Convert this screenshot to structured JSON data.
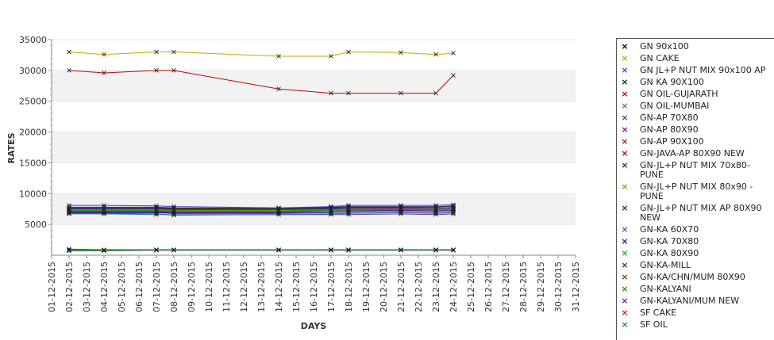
{
  "chart_data": {
    "type": "line",
    "xlabel": "DAYS",
    "ylabel": "RATES",
    "ylim": [
      0,
      35000
    ],
    "yticks": [
      5000,
      10000,
      15000,
      20000,
      25000,
      30000,
      35000
    ],
    "x_dates": [
      "01-12-2015",
      "02-12-2015",
      "03-12-2015",
      "04-12-2015",
      "05-12-2015",
      "06-12-2015",
      "07-12-2015",
      "08-12-2015",
      "09-12-2015",
      "10-12-2015",
      "11-12-2015",
      "12-12-2015",
      "13-12-2015",
      "14-12-2015",
      "15-12-2015",
      "16-12-2015",
      "17-12-2015",
      "18-12-2015",
      "19-12-2015",
      "20-12-2015",
      "21-12-2015",
      "22-12-2015",
      "23-12-2015",
      "24-12-2015",
      "25-12-2015",
      "26-12-2015",
      "27-12-2015",
      "28-12-2015",
      "29-12-2015",
      "30-12-2015",
      "31-12-2015"
    ],
    "grid_bands": true,
    "legend_position": "right",
    "series": [
      {
        "name": "GN 90x100",
        "color": "#000000",
        "points": [
          [
            "02-12-2015",
            7200
          ],
          [
            "04-12-2015",
            7200
          ],
          [
            "07-12-2015",
            7300
          ],
          [
            "08-12-2015",
            7300
          ],
          [
            "14-12-2015",
            7200
          ],
          [
            "17-12-2015",
            7400
          ],
          [
            "18-12-2015",
            7400
          ],
          [
            "21-12-2015",
            7500
          ],
          [
            "23-12-2015",
            7400
          ],
          [
            "24-12-2015",
            7500
          ]
        ]
      },
      {
        "name": "GN CAKE",
        "color": "#c8a800",
        "points": [
          [
            "02-12-2015",
            33000
          ],
          [
            "04-12-2015",
            32600
          ],
          [
            "07-12-2015",
            33000
          ],
          [
            "08-12-2015",
            33000
          ],
          [
            "14-12-2015",
            32300
          ],
          [
            "17-12-2015",
            32300
          ],
          [
            "18-12-2015",
            33000
          ],
          [
            "21-12-2015",
            32900
          ],
          [
            "23-12-2015",
            32600
          ],
          [
            "24-12-2015",
            32800
          ]
        ]
      },
      {
        "name": "GN JL+P NUT MIX 90x100 AP",
        "color": "#4444cc",
        "points": [
          [
            "02-12-2015",
            8100
          ],
          [
            "04-12-2015",
            8100
          ],
          [
            "07-12-2015",
            8000
          ],
          [
            "08-12-2015",
            7900
          ],
          [
            "14-12-2015",
            7700
          ],
          [
            "17-12-2015",
            7900
          ],
          [
            "18-12-2015",
            8100
          ],
          [
            "21-12-2015",
            8100
          ],
          [
            "23-12-2015",
            8100
          ],
          [
            "24-12-2015",
            8200
          ]
        ]
      },
      {
        "name": "GN KA 90X100",
        "color": "#004400",
        "points": [
          [
            "02-12-2015",
            7500
          ],
          [
            "04-12-2015",
            7500
          ],
          [
            "07-12-2015",
            7500
          ],
          [
            "08-12-2015",
            7400
          ],
          [
            "14-12-2015",
            7300
          ],
          [
            "17-12-2015",
            7400
          ],
          [
            "18-12-2015",
            7500
          ],
          [
            "21-12-2015",
            7600
          ],
          [
            "23-12-2015",
            7600
          ],
          [
            "24-12-2015",
            7700
          ]
        ]
      },
      {
        "name": "GN OIL-GUJARATH",
        "color": "#cc0000",
        "points": [
          [
            "02-12-2015",
            30000
          ],
          [
            "04-12-2015",
            29600
          ],
          [
            "07-12-2015",
            30000
          ],
          [
            "08-12-2015",
            30000
          ],
          [
            "14-12-2015",
            27000
          ],
          [
            "17-12-2015",
            26300
          ],
          [
            "18-12-2015",
            26300
          ],
          [
            "21-12-2015",
            26300
          ],
          [
            "23-12-2015",
            26300
          ],
          [
            "24-12-2015",
            29200
          ]
        ]
      },
      {
        "name": "GN OIL-MUMBAI",
        "color": "#339933",
        "points": [
          [
            "02-12-2015",
            700
          ],
          [
            "04-12-2015",
            700
          ],
          [
            "07-12-2015",
            800
          ],
          [
            "08-12-2015",
            800
          ],
          [
            "14-12-2015",
            800
          ],
          [
            "17-12-2015",
            800
          ],
          [
            "18-12-2015",
            800
          ],
          [
            "21-12-2015",
            800
          ],
          [
            "23-12-2015",
            800
          ],
          [
            "24-12-2015",
            800
          ]
        ]
      },
      {
        "name": "GN-AP 70X80",
        "color": "#6633aa",
        "points": [
          [
            "02-12-2015",
            6800
          ],
          [
            "04-12-2015",
            6800
          ],
          [
            "07-12-2015",
            6700
          ],
          [
            "08-12-2015",
            6500
          ],
          [
            "14-12-2015",
            6600
          ],
          [
            "17-12-2015",
            6600
          ],
          [
            "18-12-2015",
            6600
          ],
          [
            "21-12-2015",
            6700
          ],
          [
            "23-12-2015",
            6600
          ],
          [
            "24-12-2015",
            6700
          ]
        ]
      },
      {
        "name": "GN-AP 80X90",
        "color": "#990099",
        "points": [
          [
            "02-12-2015",
            7000
          ],
          [
            "04-12-2015",
            7000
          ],
          [
            "07-12-2015",
            7000
          ],
          [
            "08-12-2015",
            6900
          ],
          [
            "14-12-2015",
            6900
          ],
          [
            "17-12-2015",
            7100
          ],
          [
            "18-12-2015",
            7200
          ],
          [
            "21-12-2015",
            7300
          ],
          [
            "23-12-2015",
            7200
          ],
          [
            "24-12-2015",
            7300
          ]
        ]
      },
      {
        "name": "GN-AP 90X100",
        "color": "#773344",
        "points": [
          [
            "02-12-2015",
            7300
          ],
          [
            "04-12-2015",
            7300
          ],
          [
            "07-12-2015",
            7200
          ],
          [
            "08-12-2015",
            7100
          ],
          [
            "14-12-2015",
            7000
          ],
          [
            "17-12-2015",
            7200
          ],
          [
            "18-12-2015",
            7300
          ],
          [
            "21-12-2015",
            7400
          ],
          [
            "23-12-2015",
            7400
          ],
          [
            "24-12-2015",
            7500
          ]
        ]
      },
      {
        "name": "GN-JAVA-AP 80X90 NEW",
        "color": "#aa0022",
        "points": [
          [
            "02-12-2015",
            7600
          ],
          [
            "04-12-2015",
            7600
          ],
          [
            "07-12-2015",
            7600
          ],
          [
            "08-12-2015",
            7500
          ],
          [
            "14-12-2015",
            7400
          ],
          [
            "17-12-2015",
            7600
          ],
          [
            "18-12-2015",
            7700
          ],
          [
            "21-12-2015",
            7700
          ],
          [
            "23-12-2015",
            7600
          ],
          [
            "24-12-2015",
            7700
          ]
        ]
      },
      {
        "name": "GN-JL+P NUT MIX 70x80-PUNE",
        "color": "#551155",
        "points": [
          [
            "02-12-2015",
            7100
          ],
          [
            "04-12-2015",
            7100
          ],
          [
            "07-12-2015",
            7100
          ],
          [
            "08-12-2015",
            7000
          ],
          [
            "14-12-2015",
            7000
          ],
          [
            "17-12-2015",
            7200
          ],
          [
            "18-12-2015",
            7200
          ],
          [
            "21-12-2015",
            7300
          ],
          [
            "23-12-2015",
            7300
          ],
          [
            "24-12-2015",
            7400
          ]
        ]
      },
      {
        "name": "GN-JL+P NUT MIX 80x90 - PUNE",
        "color": "#88aa00",
        "points": [
          [
            "02-12-2015",
            7400
          ],
          [
            "04-12-2015",
            7400
          ],
          [
            "07-12-2015",
            7400
          ],
          [
            "08-12-2015",
            7300
          ],
          [
            "14-12-2015",
            7300
          ],
          [
            "17-12-2015",
            7400
          ],
          [
            "18-12-2015",
            7500
          ],
          [
            "21-12-2015",
            7500
          ],
          [
            "23-12-2015",
            7500
          ],
          [
            "24-12-2015",
            7600
          ]
        ]
      },
      {
        "name": "GN-JL+P NUT MIX AP 80X90 NEW",
        "color": "#223322",
        "points": [
          [
            "02-12-2015",
            7700
          ],
          [
            "04-12-2015",
            7700
          ],
          [
            "07-12-2015",
            7700
          ],
          [
            "08-12-2015",
            7600
          ],
          [
            "14-12-2015",
            7500
          ],
          [
            "17-12-2015",
            7700
          ],
          [
            "18-12-2015",
            7800
          ],
          [
            "21-12-2015",
            7800
          ],
          [
            "23-12-2015",
            7800
          ],
          [
            "24-12-2015",
            7900
          ]
        ]
      },
      {
        "name": "GN-KA 60X70",
        "color": "#3366cc",
        "points": [
          [
            "02-12-2015",
            6700
          ],
          [
            "04-12-2015",
            6700
          ],
          [
            "07-12-2015",
            6600
          ],
          [
            "08-12-2015",
            6600
          ],
          [
            "14-12-2015",
            6600
          ],
          [
            "17-12-2015",
            6700
          ],
          [
            "18-12-2015",
            6800
          ],
          [
            "21-12-2015",
            6900
          ],
          [
            "23-12-2015",
            6800
          ],
          [
            "24-12-2015",
            6900
          ]
        ]
      },
      {
        "name": "GN-KA 70X80",
        "color": "#112288",
        "points": [
          [
            "02-12-2015",
            6900
          ],
          [
            "04-12-2015",
            6900
          ],
          [
            "07-12-2015",
            6900
          ],
          [
            "08-12-2015",
            6800
          ],
          [
            "14-12-2015",
            6800
          ],
          [
            "17-12-2015",
            6900
          ],
          [
            "18-12-2015",
            7000
          ],
          [
            "21-12-2015",
            7100
          ],
          [
            "23-12-2015",
            7000
          ],
          [
            "24-12-2015",
            7100
          ]
        ]
      },
      {
        "name": "GN-KA 80X90",
        "color": "#22aa44",
        "points": [
          [
            "02-12-2015",
            7200
          ],
          [
            "04-12-2015",
            7200
          ],
          [
            "07-12-2015",
            7200
          ],
          [
            "08-12-2015",
            7100
          ],
          [
            "14-12-2015",
            7100
          ],
          [
            "17-12-2015",
            7200
          ],
          [
            "18-12-2015",
            7300
          ],
          [
            "21-12-2015",
            7400
          ],
          [
            "23-12-2015",
            7300
          ],
          [
            "24-12-2015",
            7400
          ]
        ]
      },
      {
        "name": "GN-KA-MILL",
        "color": "#333377",
        "points": [
          [
            "02-12-2015",
            7800
          ],
          [
            "04-12-2015",
            7800
          ],
          [
            "07-12-2015",
            7800
          ],
          [
            "08-12-2015",
            7700
          ],
          [
            "14-12-2015",
            7600
          ],
          [
            "17-12-2015",
            7800
          ],
          [
            "18-12-2015",
            7900
          ],
          [
            "21-12-2015",
            7900
          ],
          [
            "23-12-2015",
            7900
          ],
          [
            "24-12-2015",
            8000
          ]
        ]
      },
      {
        "name": "GN-KA/CHN/MUM 80X90",
        "color": "#993300",
        "points": [
          [
            "02-12-2015",
            900
          ],
          [
            "04-12-2015",
            800
          ],
          [
            "07-12-2015",
            900
          ],
          [
            "08-12-2015",
            900
          ],
          [
            "14-12-2015",
            900
          ],
          [
            "17-12-2015",
            900
          ],
          [
            "18-12-2015",
            900
          ],
          [
            "21-12-2015",
            900
          ],
          [
            "23-12-2015",
            900
          ],
          [
            "24-12-2015",
            900
          ]
        ]
      },
      {
        "name": "GN-KALYANI",
        "color": "#119911",
        "points": [
          [
            "02-12-2015",
            7300
          ],
          [
            "04-12-2015",
            7300
          ],
          [
            "07-12-2015",
            7300
          ],
          [
            "08-12-2015",
            7200
          ],
          [
            "14-12-2015",
            7200
          ],
          [
            "17-12-2015",
            7300
          ],
          [
            "18-12-2015",
            7400
          ],
          [
            "21-12-2015",
            7400
          ],
          [
            "23-12-2015",
            7400
          ],
          [
            "24-12-2015",
            7500
          ]
        ]
      },
      {
        "name": "GN-KALYANI/MUM NEW",
        "color": "#5522cc",
        "points": [
          [
            "02-12-2015",
            7500
          ],
          [
            "04-12-2015",
            7500
          ],
          [
            "07-12-2015",
            7500
          ],
          [
            "08-12-2015",
            7400
          ],
          [
            "14-12-2015",
            7400
          ],
          [
            "17-12-2015",
            7500
          ],
          [
            "18-12-2015",
            7600
          ],
          [
            "21-12-2015",
            7600
          ],
          [
            "23-12-2015",
            7600
          ],
          [
            "24-12-2015",
            7700
          ]
        ]
      },
      {
        "name": "SF CAKE",
        "color": "#dd2200",
        "points": [
          [
            "02-12-2015",
            1000
          ],
          [
            "04-12-2015",
            900
          ],
          [
            "07-12-2015",
            900
          ],
          [
            "08-12-2015",
            900
          ],
          [
            "14-12-2015",
            900
          ],
          [
            "17-12-2015",
            900
          ],
          [
            "18-12-2015",
            900
          ],
          [
            "21-12-2015",
            900
          ],
          [
            "23-12-2015",
            900
          ],
          [
            "24-12-2015",
            900
          ]
        ]
      },
      {
        "name": "SF OIL",
        "color": "#228866",
        "points": [
          [
            "02-12-2015",
            800
          ],
          [
            "04-12-2015",
            800
          ],
          [
            "07-12-2015",
            800
          ],
          [
            "08-12-2015",
            800
          ],
          [
            "14-12-2015",
            800
          ],
          [
            "17-12-2015",
            800
          ],
          [
            "18-12-2015",
            800
          ],
          [
            "21-12-2015",
            800
          ],
          [
            "23-12-2015",
            800
          ],
          [
            "24-12-2015",
            800
          ]
        ]
      }
    ]
  }
}
